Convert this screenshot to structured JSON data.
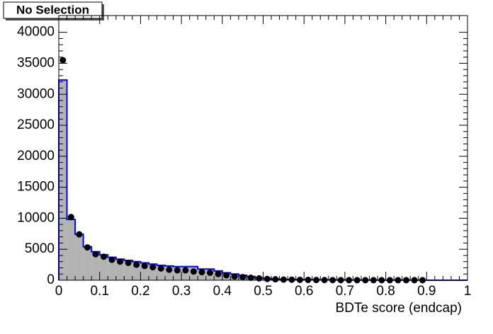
{
  "chart_data": {
    "type": "histogram",
    "title": "No Selection",
    "x_label": "BDTe score (endcap)",
    "bins": [
      0,
      0.02,
      0.04,
      0.06,
      0.08,
      0.1,
      0.12,
      0.14,
      0.16,
      0.18,
      0.2,
      0.22,
      0.24,
      0.26,
      0.28,
      0.3,
      0.32,
      0.34,
      0.36,
      0.38,
      0.4,
      0.42,
      0.44,
      0.46,
      0.48,
      0.5,
      0.52,
      0.54,
      0.56,
      0.58,
      0.6,
      0.62,
      0.64,
      0.66,
      0.68,
      0.7,
      0.72,
      0.74,
      0.76,
      0.78,
      0.8,
      0.82,
      0.84,
      0.86,
      0.88,
      0.9,
      0.92,
      0.94,
      0.96,
      0.98,
      1
    ],
    "series": [
      {
        "style": "step",
        "color": "#0000ff",
        "fill": "#b3b3b3",
        "values": [
          32300,
          9800,
          7400,
          5400,
          4600,
          4100,
          3700,
          3400,
          3200,
          3000,
          2800,
          2600,
          2400,
          2300,
          2200,
          2200,
          2200,
          1800,
          1800,
          1500,
          1200,
          1000,
          800,
          600,
          400,
          300,
          200,
          100,
          100,
          100,
          80,
          60,
          50,
          40,
          30,
          30,
          20,
          20,
          10,
          10,
          10,
          10,
          10,
          10,
          10,
          0,
          0,
          0,
          0,
          0
        ]
      },
      {
        "style": "markers",
        "color": "#000000",
        "values": [
          35500,
          10200,
          7400,
          5300,
          4200,
          3800,
          3300,
          3000,
          2800,
          2500,
          2300,
          2100,
          1900,
          1700,
          1600,
          1600,
          1400,
          1300,
          1200,
          1000,
          800,
          600,
          500,
          400,
          300,
          200,
          150,
          100,
          80,
          60,
          50,
          40,
          30,
          20,
          20,
          10,
          10,
          10,
          10,
          10,
          10,
          10,
          10,
          10,
          10,
          null,
          null,
          null,
          null,
          null
        ]
      }
    ],
    "xlim": [
      0,
      1
    ],
    "xticks": [
      0,
      0.1,
      0.2,
      0.3,
      0.4,
      0.5,
      0.6,
      0.7,
      0.8,
      0.9,
      1
    ],
    "ylim": [
      0,
      42700
    ],
    "yticks": [
      0,
      5000,
      10000,
      15000,
      20000,
      25000,
      30000,
      35000,
      40000
    ]
  }
}
